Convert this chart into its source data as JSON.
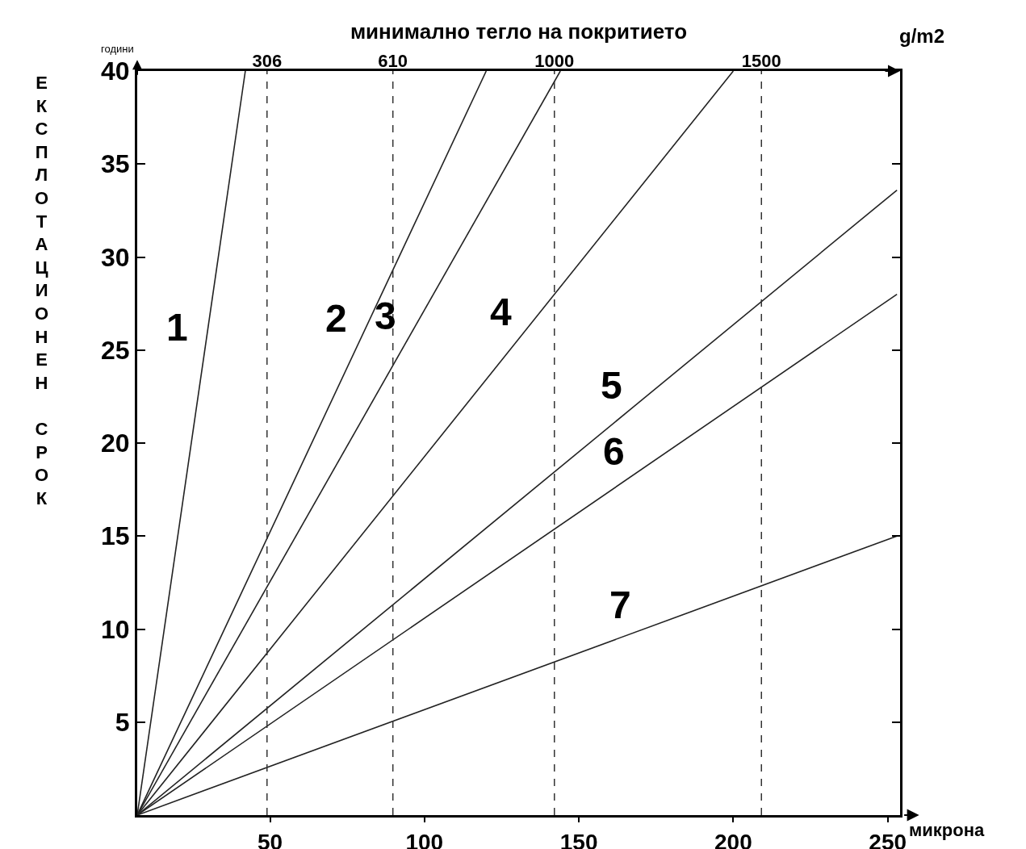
{
  "chart_data": {
    "type": "line",
    "x2label": "минимално тегло на покритието",
    "xlabel": "микрона",
    "ylabel": "ЕКСПЛОТАЦИОНЕН СРОК",
    "xlim": [
      7,
      254
    ],
    "xticks": [
      50,
      100,
      150,
      200,
      250
    ],
    "x2lim": [
      -7.4,
      1834.8
    ],
    "x2ticks": [
      306,
      610,
      1000,
      1500
    ],
    "ylim": [
      0,
      40
    ],
    "yticks": [
      5,
      10,
      15,
      20,
      25,
      30,
      35,
      40
    ],
    "grid": false,
    "legend": false,
    "marker": "none",
    "line_style": "solid",
    "series": [
      {
        "name": "1",
        "color": "#222222",
        "x": [
          7,
          42
        ],
        "values": [
          0,
          40
        ]
      },
      {
        "name": "2",
        "color": "#222222",
        "x": [
          7,
          120
        ],
        "values": [
          0,
          40
        ]
      },
      {
        "name": "3",
        "color": "#222222",
        "x": [
          7,
          144
        ],
        "values": [
          0,
          40
        ]
      },
      {
        "name": "4",
        "color": "#222222",
        "x": [
          7,
          200
        ],
        "values": [
          0,
          40
        ]
      },
      {
        "name": "5",
        "color": "#222222",
        "x": [
          7,
          253
        ],
        "values": [
          0,
          33.6
        ]
      },
      {
        "name": "6",
        "color": "#222222",
        "x": [
          7,
          253
        ],
        "values": [
          0,
          28
        ]
      },
      {
        "name": "7",
        "color": "#222222",
        "x": [
          7,
          253
        ],
        "values": [
          0,
          15
        ]
      }
    ],
    "ref_lines": [
      {
        "axis": "x2",
        "value": 306,
        "color": "#333333",
        "line_style": "dashed"
      },
      {
        "axis": "x2",
        "value": 610,
        "color": "#333333",
        "line_style": "dashed"
      },
      {
        "axis": "x2",
        "value": 1000,
        "color": "#333333",
        "line_style": "dashed"
      },
      {
        "axis": "x2",
        "value": 1500,
        "color": "#333333",
        "line_style": "dashed"
      }
    ],
    "annotations": [
      "g/m2",
      "години"
    ]
  }
}
